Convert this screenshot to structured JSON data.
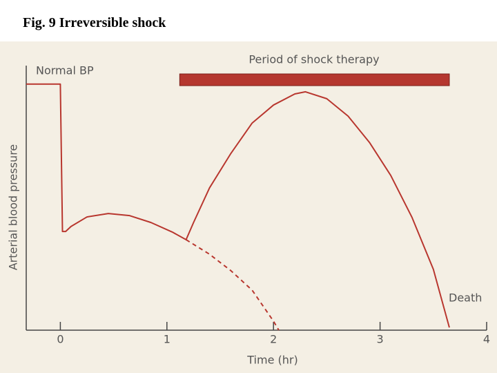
{
  "title": "Fig. 9 Irreversible shock",
  "chart_data": {
    "type": "line",
    "xlabel": "Time (hr)",
    "ylabel": "Arterial blood pressure",
    "xlim": [
      -0.32,
      4
    ],
    "xticks": [
      0,
      1,
      2,
      3,
      4
    ],
    "ylim": [
      0,
      100
    ],
    "series": [
      {
        "name": "Normal BP",
        "color": "#b8362e",
        "style": "solid",
        "x": [
          -0.32,
          0,
          0.02,
          0.05,
          0.1,
          0.25,
          0.45,
          0.65,
          0.85,
          1.05,
          1.18,
          1.25,
          1.4,
          1.6,
          1.8,
          2.0,
          2.2,
          2.3,
          2.5,
          2.7,
          2.9,
          3.1,
          3.3,
          3.5,
          3.65
        ],
        "values": [
          93,
          93,
          37.3,
          37.3,
          39.2,
          42.8,
          44.1,
          43.3,
          40.7,
          37.1,
          34.2,
          40.7,
          53.8,
          66.8,
          78.3,
          85.1,
          89.3,
          90.1,
          87.5,
          80.9,
          71,
          58.5,
          42.6,
          23,
          1
        ]
      },
      {
        "color": "#b8362e",
        "style": "dashed",
        "x": [
          1.18,
          1.4,
          1.6,
          1.8,
          2.0,
          2.05
        ],
        "values": [
          34.2,
          28.7,
          22.5,
          15.1,
          3.4,
          0
        ]
      }
    ],
    "annotations": {
      "death": "Death"
    },
    "therapy": {
      "label": "Period of shock therapy",
      "start": 1.12,
      "end": 3.65,
      "color": "#b5372f"
    }
  }
}
